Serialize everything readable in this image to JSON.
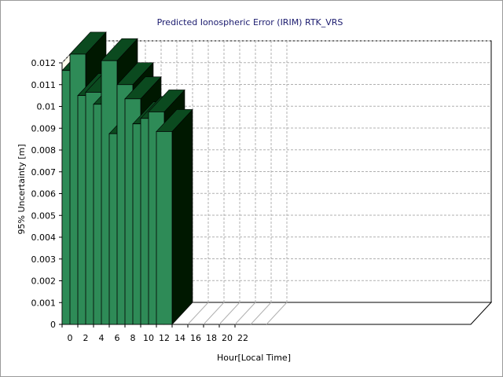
{
  "chart_data": {
    "type": "bar",
    "title": "Predicted Ionospheric Error (IRIM) RTK_VRS",
    "xlabel": "Hour[Local Time]",
    "ylabel": "95% Uncertainty [m]",
    "ylim": [
      0,
      0.012
    ],
    "yticks": [
      "0",
      "0.001",
      "0.002",
      "0.003",
      "0.004",
      "0.005",
      "0.006",
      "0.007",
      "0.008",
      "0.009",
      "0.01",
      "0.011",
      "0.012"
    ],
    "xticks": [
      "0",
      "2",
      "4",
      "6",
      "8",
      "10",
      "12",
      "14",
      "16",
      "18",
      "20",
      "22"
    ],
    "grid": true,
    "categories": [
      0,
      1,
      2,
      3,
      4,
      5,
      6,
      7,
      8,
      9,
      10,
      11,
      12
    ],
    "values": [
      0.01165,
      0.0124,
      0.0105,
      0.01065,
      0.0101,
      0.0121,
      0.00875,
      0.011,
      0.01035,
      0.0092,
      0.00945,
      0.00975,
      0.00885
    ],
    "colors": {
      "bar_front": "#2e8b57",
      "bar_top": "#0b4a1f",
      "bar_side": "#001800",
      "wall": "#ffffee",
      "grid": "#b0b0b0",
      "title": "#1a1a6e"
    }
  }
}
